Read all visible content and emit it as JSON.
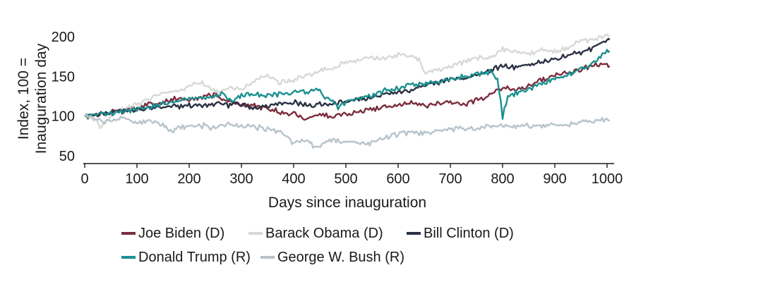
{
  "chart_data": {
    "type": "line",
    "title": "",
    "xlabel": "Days since inauguration",
    "ylabel": "Index, 100 = Inauguration day",
    "ylabel_lines": [
      "Index, 100 =",
      "Inauguration day"
    ],
    "xlim": [
      0,
      1010
    ],
    "ylim": [
      45,
      210
    ],
    "xticks": [
      0,
      100,
      200,
      300,
      400,
      500,
      600,
      700,
      800,
      900,
      1000
    ],
    "yticks": [
      50,
      100,
      150,
      200
    ],
    "grid": false,
    "legend_position": "bottom",
    "series": [
      {
        "name": "Joe Biden (D)",
        "color": "#7b2d3e",
        "points": [
          [
            0,
            100
          ],
          [
            25,
            101
          ],
          [
            50,
            106
          ],
          [
            75,
            108
          ],
          [
            100,
            110
          ],
          [
            125,
            115
          ],
          [
            150,
            118
          ],
          [
            175,
            122
          ],
          [
            200,
            120
          ],
          [
            225,
            124
          ],
          [
            250,
            127
          ],
          [
            275,
            118
          ],
          [
            300,
            115
          ],
          [
            325,
            113
          ],
          [
            350,
            110
          ],
          [
            375,
            105
          ],
          [
            400,
            104
          ],
          [
            425,
            96
          ],
          [
            450,
            102
          ],
          [
            475,
            99
          ],
          [
            500,
            103
          ],
          [
            525,
            105
          ],
          [
            550,
            108
          ],
          [
            575,
            111
          ],
          [
            600,
            113
          ],
          [
            625,
            117
          ],
          [
            650,
            113
          ],
          [
            675,
            115
          ],
          [
            700,
            117
          ],
          [
            725,
            115
          ],
          [
            750,
            120
          ],
          [
            775,
            127
          ],
          [
            800,
            137
          ],
          [
            825,
            133
          ],
          [
            850,
            138
          ],
          [
            875,
            146
          ],
          [
            900,
            150
          ],
          [
            925,
            154
          ],
          [
            950,
            158
          ],
          [
            975,
            164
          ],
          [
            1000,
            165
          ],
          [
            1005,
            163
          ]
        ]
      },
      {
        "name": "Barack Obama (D)",
        "color": "#d8d8d4",
        "points": [
          [
            0,
            100
          ],
          [
            15,
            97
          ],
          [
            30,
            88
          ],
          [
            45,
            95
          ],
          [
            60,
            106
          ],
          [
            80,
            110
          ],
          [
            100,
            114
          ],
          [
            125,
            122
          ],
          [
            150,
            129
          ],
          [
            175,
            130
          ],
          [
            200,
            137
          ],
          [
            225,
            143
          ],
          [
            250,
            130
          ],
          [
            275,
            136
          ],
          [
            300,
            134
          ],
          [
            325,
            145
          ],
          [
            350,
            152
          ],
          [
            375,
            142
          ],
          [
            400,
            146
          ],
          [
            425,
            151
          ],
          [
            450,
            156
          ],
          [
            475,
            162
          ],
          [
            500,
            167
          ],
          [
            525,
            170
          ],
          [
            550,
            174
          ],
          [
            575,
            172
          ],
          [
            600,
            178
          ],
          [
            625,
            176
          ],
          [
            640,
            170
          ],
          [
            650,
            155
          ],
          [
            675,
            158
          ],
          [
            700,
            163
          ],
          [
            725,
            168
          ],
          [
            750,
            172
          ],
          [
            775,
            175
          ],
          [
            800,
            184
          ],
          [
            825,
            182
          ],
          [
            850,
            178
          ],
          [
            875,
            184
          ],
          [
            900,
            180
          ],
          [
            925,
            186
          ],
          [
            950,
            194
          ],
          [
            975,
            196
          ],
          [
            1000,
            202
          ],
          [
            1005,
            201
          ]
        ]
      },
      {
        "name": "Bill Clinton (D)",
        "color": "#2b3044",
        "points": [
          [
            0,
            100
          ],
          [
            25,
            102
          ],
          [
            50,
            104
          ],
          [
            75,
            107
          ],
          [
            100,
            108
          ],
          [
            125,
            110
          ],
          [
            150,
            111
          ],
          [
            175,
            112
          ],
          [
            200,
            113
          ],
          [
            225,
            114
          ],
          [
            250,
            116
          ],
          [
            275,
            113
          ],
          [
            300,
            115
          ],
          [
            325,
            111
          ],
          [
            350,
            113
          ],
          [
            375,
            116
          ],
          [
            400,
            118
          ],
          [
            425,
            113
          ],
          [
            450,
            115
          ],
          [
            475,
            116
          ],
          [
            500,
            119
          ],
          [
            525,
            121
          ],
          [
            550,
            123
          ],
          [
            575,
            127
          ],
          [
            600,
            129
          ],
          [
            625,
            133
          ],
          [
            650,
            139
          ],
          [
            675,
            142
          ],
          [
            700,
            146
          ],
          [
            725,
            148
          ],
          [
            750,
            153
          ],
          [
            775,
            157
          ],
          [
            800,
            163
          ],
          [
            825,
            160
          ],
          [
            850,
            165
          ],
          [
            875,
            168
          ],
          [
            900,
            171
          ],
          [
            925,
            176
          ],
          [
            950,
            180
          ],
          [
            975,
            187
          ],
          [
            1000,
            195
          ],
          [
            1005,
            196
          ]
        ]
      },
      {
        "name": "Donald Trump (R)",
        "color": "#1a9190",
        "points": [
          [
            0,
            100
          ],
          [
            25,
            104
          ],
          [
            50,
            104
          ],
          [
            75,
            106
          ],
          [
            100,
            109
          ],
          [
            125,
            112
          ],
          [
            150,
            115
          ],
          [
            175,
            118
          ],
          [
            200,
            121
          ],
          [
            225,
            124
          ],
          [
            250,
            126
          ],
          [
            265,
            129
          ],
          [
            280,
            118
          ],
          [
            300,
            126
          ],
          [
            325,
            127
          ],
          [
            350,
            126
          ],
          [
            375,
            128
          ],
          [
            400,
            131
          ],
          [
            425,
            130
          ],
          [
            450,
            133
          ],
          [
            460,
            122
          ],
          [
            475,
            119
          ],
          [
            485,
            111
          ],
          [
            500,
            118
          ],
          [
            525,
            124
          ],
          [
            550,
            125
          ],
          [
            575,
            132
          ],
          [
            600,
            135
          ],
          [
            625,
            139
          ],
          [
            650,
            141
          ],
          [
            675,
            143
          ],
          [
            700,
            147
          ],
          [
            725,
            150
          ],
          [
            750,
            152
          ],
          [
            775,
            155
          ],
          [
            790,
            147
          ],
          [
            800,
            100
          ],
          [
            810,
            124
          ],
          [
            825,
            129
          ],
          [
            850,
            135
          ],
          [
            875,
            142
          ],
          [
            900,
            147
          ],
          [
            925,
            153
          ],
          [
            950,
            160
          ],
          [
            975,
            167
          ],
          [
            1000,
            180
          ],
          [
            1005,
            182
          ]
        ]
      },
      {
        "name": "George W. Bush (R)",
        "color": "#b7c4cb",
        "points": [
          [
            0,
            100
          ],
          [
            25,
            98
          ],
          [
            40,
            92
          ],
          [
            50,
            95
          ],
          [
            75,
            98
          ],
          [
            100,
            92
          ],
          [
            125,
            94
          ],
          [
            150,
            89
          ],
          [
            170,
            78
          ],
          [
            175,
            84
          ],
          [
            200,
            87
          ],
          [
            225,
            88
          ],
          [
            250,
            85
          ],
          [
            275,
            89
          ],
          [
            300,
            88
          ],
          [
            325,
            86
          ],
          [
            350,
            84
          ],
          [
            375,
            80
          ],
          [
            400,
            66
          ],
          [
            425,
            70
          ],
          [
            440,
            59
          ],
          [
            460,
            67
          ],
          [
            475,
            70
          ],
          [
            500,
            66
          ],
          [
            525,
            67
          ],
          [
            540,
            63
          ],
          [
            560,
            70
          ],
          [
            575,
            73
          ],
          [
            600,
            77
          ],
          [
            625,
            79
          ],
          [
            650,
            78
          ],
          [
            675,
            82
          ],
          [
            700,
            84
          ],
          [
            725,
            85
          ],
          [
            750,
            86
          ],
          [
            775,
            87
          ],
          [
            800,
            88
          ],
          [
            825,
            87
          ],
          [
            850,
            88
          ],
          [
            875,
            88
          ],
          [
            900,
            89
          ],
          [
            925,
            90
          ],
          [
            950,
            92
          ],
          [
            975,
            93
          ],
          [
            1000,
            96
          ],
          [
            1005,
            95
          ]
        ]
      }
    ]
  }
}
